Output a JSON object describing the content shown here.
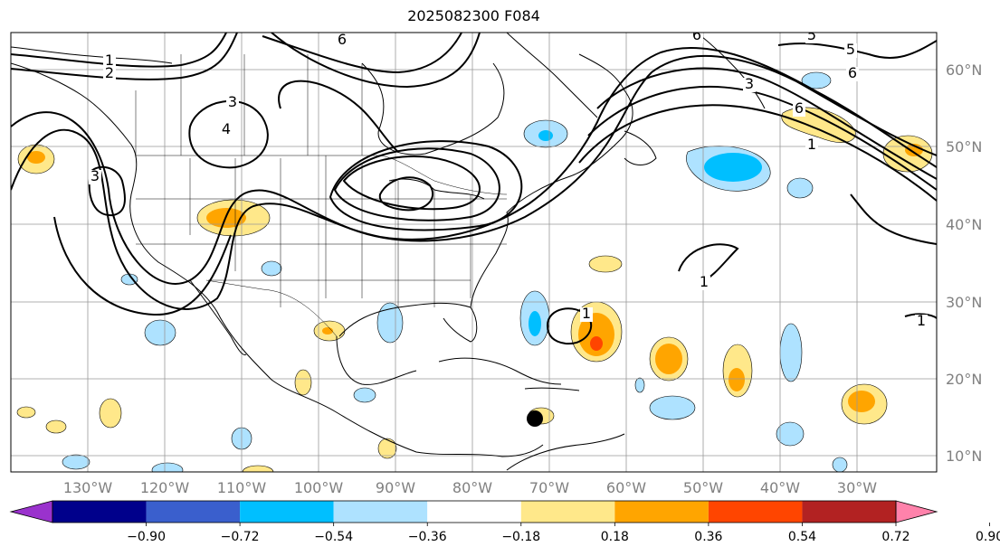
{
  "title": "2025082300 F084",
  "map": {
    "lon_labels": [
      "130°W",
      "120°W",
      "110°W",
      "100°W",
      "90°W",
      "80°W",
      "70°W",
      "60°W",
      "50°W",
      "40°W",
      "30°W"
    ],
    "lat_labels": [
      "60°N",
      "50°N",
      "40°N",
      "30°N",
      "20°N",
      "10°N"
    ],
    "gridlines": true,
    "contour_labels": [
      "1",
      "2",
      "6",
      "6",
      "5",
      "5",
      "6",
      "3",
      "4",
      "3",
      "3",
      "6",
      "1",
      "1",
      "1",
      "1"
    ]
  },
  "colorbar": {
    "ticks": [
      "−0.90",
      "−0.72",
      "−0.54",
      "−0.36",
      "−0.18",
      "0.18",
      "0.36",
      "0.54",
      "0.72",
      "0.90"
    ],
    "colors": [
      "#9a32cd",
      "#00008b",
      "#3a5fcd",
      "#00bfff",
      "#aee2ff",
      "#ffffff",
      "#ffe88a",
      "#ffa500",
      "#ff4500",
      "#b22222",
      "#ff82ab"
    ],
    "extend": "both"
  },
  "marker": {
    "icon": "filled-circle-marker"
  }
}
